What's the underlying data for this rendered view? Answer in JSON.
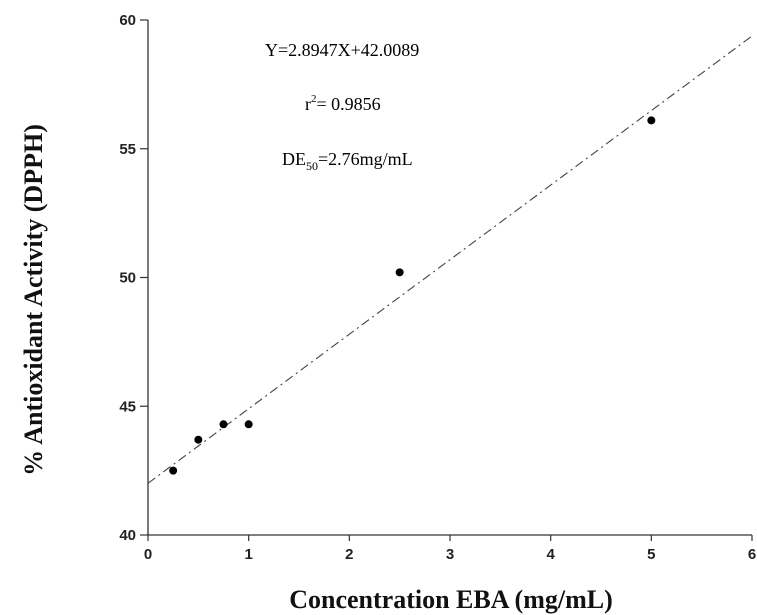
{
  "chart_data": {
    "type": "scatter",
    "xlabel": "Concentration EBA (mg/mL)",
    "ylabel": "% Antioxidant Activity (DPPH)",
    "xlim": [
      0,
      6
    ],
    "ylim": [
      40,
      60
    ],
    "xticks": [
      0,
      1,
      2,
      3,
      4,
      5,
      6
    ],
    "yticks": [
      40,
      45,
      50,
      55,
      60
    ],
    "grid": false,
    "points": [
      {
        "x": 0.25,
        "y": 42.5
      },
      {
        "x": 0.5,
        "y": 43.7
      },
      {
        "x": 0.75,
        "y": 44.3
      },
      {
        "x": 1.0,
        "y": 44.3
      },
      {
        "x": 2.5,
        "y": 50.2
      },
      {
        "x": 5.0,
        "y": 56.1
      }
    ],
    "trendline": {
      "slope": 2.8947,
      "intercept": 42.0089,
      "style": "dash-dot"
    },
    "annotations": {
      "equation": "Y=2.8947X+42.0089",
      "r2_base": "r",
      "r2_sup": "2",
      "r2_value": "= 0.9856",
      "de_base": "DE",
      "de_sub": "50",
      "de_value": "=2.76mg/mL"
    }
  }
}
